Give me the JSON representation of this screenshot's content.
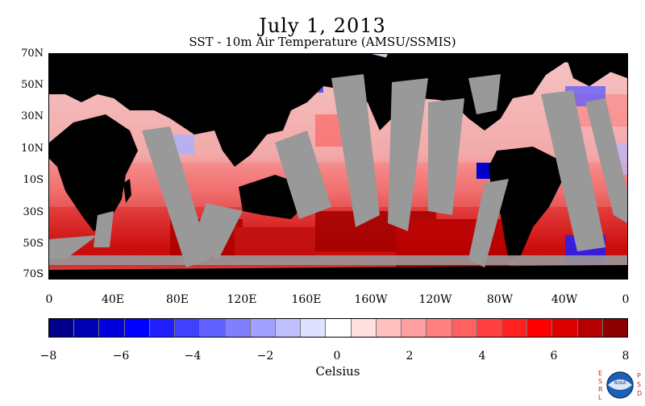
{
  "title": "July 1, 2013",
  "subtitle": "SST - 10m Air Temperature (AMSU/SSMIS)",
  "lat_labels": [
    "70N",
    "50N",
    "30N",
    "10N",
    "10S",
    "30S",
    "50S",
    "70S"
  ],
  "lon_labels": [
    "0",
    "40E",
    "80E",
    "120E",
    "160E",
    "160W",
    "120W",
    "80W",
    "40W",
    "0"
  ],
  "colorbar": {
    "title": "Celsius",
    "tick_labels": [
      "−8",
      "−6",
      "−4",
      "−2",
      "0",
      "2",
      "4",
      "6",
      "8"
    ],
    "colors": [
      "#00008b",
      "#0000b4",
      "#0000dc",
      "#0000ff",
      "#2020ff",
      "#4040ff",
      "#6060ff",
      "#8080ff",
      "#a0a0ff",
      "#c0c0ff",
      "#e0e0ff",
      "#ffffff",
      "#ffe0e0",
      "#ffc0c0",
      "#ffa0a0",
      "#ff8080",
      "#ff6060",
      "#ff4040",
      "#ff2020",
      "#ff0000",
      "#dc0000",
      "#b40000",
      "#8b0000"
    ]
  },
  "map": {
    "land_color": "#000000",
    "nodata_color": "#999999",
    "ocean_base_color": "#f1a6a6"
  },
  "logo": {
    "left_letters": [
      "E",
      "S",
      "R",
      "L"
    ],
    "right_letters": [
      "P",
      "S",
      "D"
    ],
    "name": "NOAA"
  }
}
